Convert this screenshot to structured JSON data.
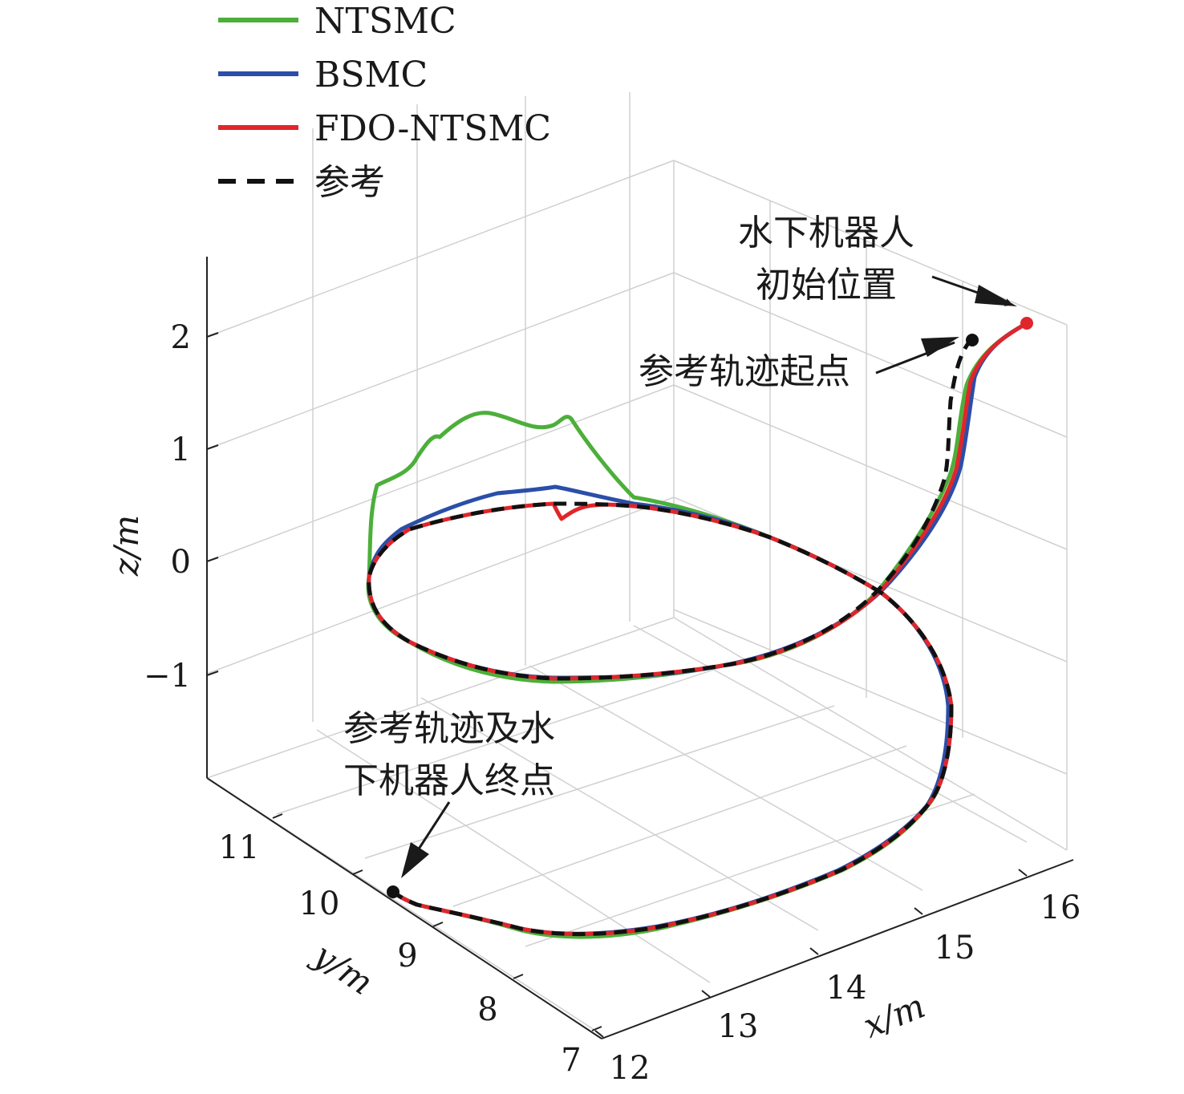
{
  "chart_data": {
    "type": "line",
    "projection": "3d",
    "xlabel": "x/m",
    "ylabel": "y/m",
    "zlabel": "z/m",
    "x_ticks": [
      "12",
      "13",
      "14",
      "15",
      "16"
    ],
    "y_ticks": [
      "7",
      "8",
      "9",
      "10",
      "11"
    ],
    "z_ticks": [
      "2",
      "1",
      "0",
      "−1"
    ],
    "xlim": [
      12,
      16.3
    ],
    "ylim": [
      7,
      11.5
    ],
    "zlim": [
      -1.8,
      2.6
    ],
    "grid": true,
    "legend_position": "top-left",
    "series": [
      {
        "name": "NTSMC",
        "color": "#4caf3a",
        "style": "solid"
      },
      {
        "name": "BSMC",
        "color": "#2b4ea8",
        "style": "solid"
      },
      {
        "name": "FDO-NTSMC",
        "color": "#e0262b",
        "style": "solid"
      },
      {
        "name": "参考",
        "color": "#111111",
        "style": "dashed"
      }
    ],
    "reference_helix": {
      "center_x": 14,
      "center_y": 9.2,
      "radius": 2,
      "z_start": 1.9,
      "z_end": -1.8,
      "turns": 1.4
    },
    "initial_position": {
      "x": 16.0,
      "y": 9.4,
      "z": 2.05
    },
    "annotations": [
      {
        "id": "robot-start",
        "lines": [
          "水下机器人",
          "初始位置"
        ]
      },
      {
        "id": "ref-start",
        "lines": [
          "参考轨迹起点"
        ]
      },
      {
        "id": "end",
        "lines": [
          "参考轨迹及水",
          "下机器人终点"
        ]
      }
    ]
  }
}
